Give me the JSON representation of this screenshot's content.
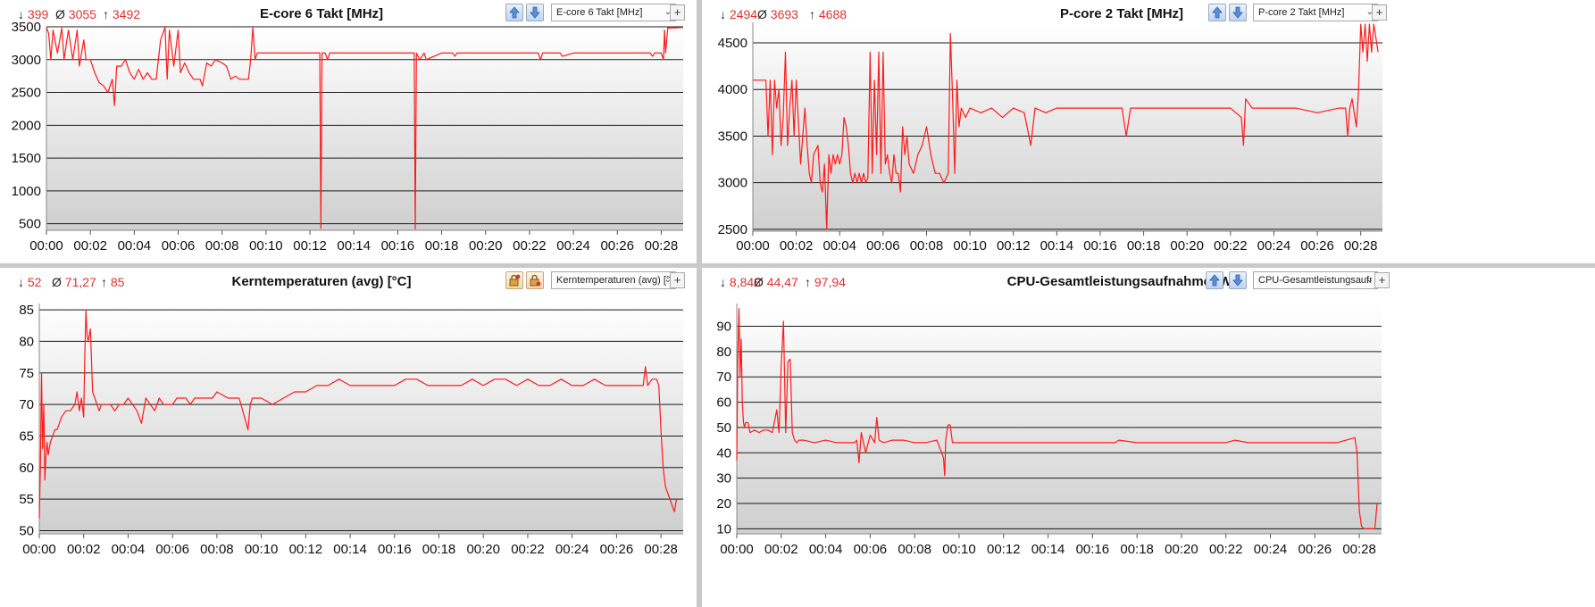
{
  "colors": {
    "line": "#ff1a1a",
    "stat_text": "#e0322f",
    "grid": "#1a1a1a",
    "plot_bg_top": "#ffffff",
    "plot_bg_bottom": "#cfcfcf"
  },
  "icons": {
    "min_symbol": "↓",
    "avg_symbol": "Ø",
    "max_symbol": "↑",
    "plus_symbol": "+",
    "dropdown_arrow": "⌄"
  },
  "panels": [
    {
      "title": "E-core 6 Takt [MHz]",
      "stats": {
        "min": "399",
        "avg": "3055",
        "max": "3492"
      },
      "dropdown": "E-core 6 Takt [MHz]",
      "button_style": "arrows",
      "icon_names": [
        "arrow-up-icon",
        "arrow-down-icon"
      ]
    },
    {
      "title": "P-core 2 Takt [MHz]",
      "stats": {
        "min": "2494",
        "avg": "3693",
        "max": "4688"
      },
      "dropdown": "P-core 2 Takt [MHz]",
      "button_style": "arrows",
      "icon_names": [
        "arrow-up-icon",
        "arrow-down-icon"
      ]
    },
    {
      "title": "Kerntemperaturen (avg) [°C]",
      "stats": {
        "min": "52",
        "avg": "71,27",
        "max": "85"
      },
      "dropdown": "Kerntemperaturen (avg) [°",
      "button_style": "locks",
      "icon_names": [
        "lock-up-icon",
        "lock-down-icon"
      ]
    },
    {
      "title": "CPU-Gesamtleistungsaufnahme [W]",
      "stats": {
        "min": "8,848",
        "avg": "44,47",
        "max": "97,94"
      },
      "dropdown": "CPU-Gesamtleistungsaufr",
      "button_style": "arrows",
      "icon_names": [
        "arrow-up-icon",
        "arrow-down-icon"
      ]
    }
  ],
  "chart_data": [
    {
      "type": "line",
      "title": "E-core 6 Takt [MHz]",
      "x_unit": "minutes",
      "xlim": [
        0,
        29
      ],
      "ylim": [
        400,
        3500
      ],
      "yticks": [
        500,
        1000,
        1500,
        2000,
        2500,
        3000,
        3500
      ],
      "xtick_labels": [
        "00:00",
        "00:02",
        "00:04",
        "00:06",
        "00:08",
        "00:10",
        "00:12",
        "00:14",
        "00:16",
        "00:18",
        "00:20",
        "00:22",
        "00:24",
        "00:26",
        "00:28"
      ],
      "grid": true,
      "series": [
        {
          "x": [
            0,
            0.1,
            0.2,
            0.3,
            0.5,
            0.7,
            0.8,
            1.0,
            1.2,
            1.4,
            1.5,
            1.7,
            1.8,
            2.0,
            2.2,
            2.4,
            2.6,
            2.8,
            3.0,
            3.1,
            3.2,
            3.4,
            3.6,
            3.8,
            4.0,
            4.2,
            4.4,
            4.6,
            4.8,
            5.0,
            5.2,
            5.4,
            5.5,
            5.6,
            5.8,
            6.0,
            6.1,
            6.3,
            6.5,
            6.7,
            7.0,
            7.1,
            7.3,
            7.5,
            7.7,
            8.0,
            8.2,
            8.4,
            8.6,
            8.8,
            9.0,
            9.2,
            9.3,
            9.4,
            9.5,
            9.6,
            10.0,
            11.0,
            12.2,
            12.45,
            12.5,
            12.55,
            12.7,
            12.8,
            12.9,
            13.0,
            13.5,
            14.0,
            15.0,
            16.0,
            16.5,
            16.75,
            16.8,
            16.85,
            17.0,
            17.2,
            17.3,
            18.0,
            18.5,
            18.6,
            18.7,
            19.0,
            20.0,
            21.0,
            22.0,
            22.4,
            22.5,
            22.6,
            23.0,
            23.3,
            23.4,
            23.5,
            24.0,
            25.0,
            26.0,
            27.0,
            27.5,
            27.6,
            27.7,
            28.0,
            28.1,
            28.15,
            28.2,
            28.3,
            28.4,
            29.0
          ],
          "y": [
            3490,
            3400,
            3000,
            3450,
            3100,
            3480,
            3000,
            3450,
            3000,
            3450,
            2900,
            3300,
            3000,
            3000,
            2800,
            2650,
            2600,
            2500,
            2700,
            2300,
            2900,
            2900,
            3000,
            2800,
            2700,
            2850,
            2700,
            2800,
            2700,
            2700,
            3300,
            3490,
            2700,
            3450,
            2900,
            3450,
            2800,
            2950,
            2800,
            2700,
            2700,
            2600,
            2950,
            2900,
            3000,
            2950,
            2900,
            2700,
            2750,
            2700,
            2700,
            2700,
            3000,
            3490,
            3000,
            3100,
            3100,
            3100,
            3100,
            3100,
            430,
            3100,
            3100,
            3000,
            3100,
            3100,
            3100,
            3100,
            3100,
            3100,
            3100,
            3100,
            420,
            3100,
            3000,
            3100,
            3000,
            3100,
            3100,
            3050,
            3100,
            3100,
            3100,
            3100,
            3100,
            3100,
            3000,
            3100,
            3100,
            3100,
            3100,
            3050,
            3100,
            3100,
            3100,
            3100,
            3100,
            3050,
            3100,
            3100,
            3000,
            3450,
            3100,
            3490,
            3480,
            3490
          ]
        }
      ]
    },
    {
      "type": "line",
      "title": "P-core 2 Takt [MHz]",
      "x_unit": "minutes",
      "xlim": [
        0,
        29
      ],
      "ylim": [
        2480,
        4720
      ],
      "yticks": [
        2500,
        3000,
        3500,
        4000,
        4500
      ],
      "xtick_labels": [
        "00:00",
        "00:02",
        "00:04",
        "00:06",
        "00:08",
        "00:10",
        "00:12",
        "00:14",
        "00:16",
        "00:18",
        "00:20",
        "00:22",
        "00:24",
        "00:26",
        "00:28"
      ],
      "grid": true,
      "series": [
        {
          "x": [
            0,
            0.6,
            0.7,
            0.8,
            0.9,
            1.0,
            1.1,
            1.2,
            1.3,
            1.4,
            1.5,
            1.6,
            1.7,
            1.8,
            1.9,
            2.0,
            2.2,
            2.4,
            2.5,
            2.6,
            2.7,
            2.8,
            3.0,
            3.1,
            3.2,
            3.3,
            3.4,
            3.5,
            3.6,
            3.7,
            3.8,
            3.9,
            4.0,
            4.1,
            4.2,
            4.3,
            4.4,
            4.5,
            4.6,
            4.7,
            4.8,
            4.9,
            5.0,
            5.1,
            5.2,
            5.3,
            5.4,
            5.5,
            5.6,
            5.7,
            5.8,
            5.9,
            6.0,
            6.1,
            6.2,
            6.3,
            6.4,
            6.5,
            6.6,
            6.7,
            6.8,
            6.9,
            7.0,
            7.1,
            7.2,
            7.4,
            7.6,
            7.8,
            8.0,
            8.2,
            8.4,
            8.6,
            8.8,
            9.0,
            9.1,
            9.2,
            9.3,
            9.4,
            9.5,
            9.6,
            9.8,
            10.0,
            10.5,
            11.0,
            11.5,
            12.0,
            12.5,
            12.8,
            13.0,
            13.5,
            14.0,
            15.0,
            16.0,
            17.0,
            17.2,
            17.4,
            18.0,
            19.0,
            20.0,
            21.0,
            22.0,
            22.5,
            22.6,
            22.7,
            23.0,
            24.0,
            25.0,
            26.0,
            27.0,
            27.3,
            27.4,
            27.5,
            27.6,
            27.8,
            27.9,
            28.0,
            28.1,
            28.2,
            28.3,
            28.4,
            28.5,
            28.6,
            28.8
          ],
          "y": [
            4100,
            4100,
            3500,
            4100,
            3300,
            4100,
            3800,
            4000,
            3400,
            3700,
            4400,
            3400,
            3800,
            4100,
            3500,
            4100,
            3200,
            3800,
            3400,
            3100,
            3000,
            3300,
            3400,
            3000,
            2900,
            3200,
            2500,
            3300,
            3100,
            3300,
            3200,
            3300,
            3200,
            3300,
            3700,
            3600,
            3400,
            3100,
            3000,
            3100,
            3000,
            3100,
            3000,
            3100,
            3000,
            3050,
            4400,
            3100,
            4100,
            3300,
            4400,
            3100,
            4400,
            3200,
            3300,
            3100,
            3000,
            3300,
            3100,
            3100,
            2900,
            3600,
            3300,
            3500,
            3200,
            3100,
            3300,
            3400,
            3600,
            3300,
            3100,
            3100,
            3000,
            3100,
            4600,
            3900,
            3100,
            4100,
            3600,
            3800,
            3700,
            3800,
            3750,
            3800,
            3700,
            3800,
            3750,
            3400,
            3800,
            3750,
            3800,
            3800,
            3800,
            3800,
            3500,
            3800,
            3800,
            3800,
            3800,
            3800,
            3800,
            3700,
            3400,
            3900,
            3800,
            3800,
            3800,
            3750,
            3800,
            3800,
            3500,
            3800,
            3900,
            3600,
            4000,
            4700,
            4400,
            4700,
            4300,
            4700,
            4400,
            4700,
            4400
          ]
        }
      ]
    },
    {
      "type": "line",
      "title": "Kerntemperaturen (avg) [°C]",
      "x_unit": "minutes",
      "xlim": [
        0,
        29
      ],
      "ylim": [
        49.5,
        86
      ],
      "yticks": [
        50,
        55,
        60,
        65,
        70,
        75,
        80,
        85
      ],
      "xtick_labels": [
        "00:00",
        "00:02",
        "00:04",
        "00:06",
        "00:08",
        "00:10",
        "00:12",
        "00:14",
        "00:16",
        "00:18",
        "00:20",
        "00:22",
        "00:24",
        "00:26",
        "00:28"
      ],
      "grid": true,
      "series": [
        {
          "x": [
            0,
            0.05,
            0.1,
            0.15,
            0.2,
            0.25,
            0.3,
            0.35,
            0.4,
            0.5,
            0.6,
            0.7,
            0.8,
            0.9,
            1.0,
            1.2,
            1.4,
            1.6,
            1.7,
            1.8,
            1.9,
            2.0,
            2.05,
            2.1,
            2.15,
            2.2,
            2.3,
            2.4,
            2.5,
            2.6,
            2.7,
            2.8,
            3.0,
            3.2,
            3.4,
            3.6,
            3.8,
            4.0,
            4.2,
            4.4,
            4.6,
            4.8,
            5.0,
            5.2,
            5.4,
            5.6,
            5.8,
            6.0,
            6.2,
            6.4,
            6.6,
            6.8,
            7.0,
            7.2,
            7.5,
            7.8,
            8.0,
            8.5,
            9.0,
            9.4,
            9.5,
            9.6,
            9.8,
            10.0,
            10.5,
            11.0,
            11.5,
            12.0,
            12.5,
            13.0,
            13.5,
            14.0,
            14.5,
            15.0,
            15.5,
            16.0,
            16.5,
            17.0,
            17.5,
            18.0,
            18.5,
            19.0,
            19.5,
            20.0,
            20.5,
            21.0,
            21.5,
            22.0,
            22.5,
            23.0,
            23.5,
            24.0,
            24.5,
            25.0,
            25.5,
            26.0,
            26.5,
            27.0,
            27.2,
            27.3,
            27.4,
            27.6,
            27.8,
            27.9,
            28.0,
            28.1,
            28.2,
            28.3,
            28.4,
            28.5,
            28.6,
            28.7
          ],
          "y": [
            52,
            60,
            75,
            63,
            70,
            58,
            62,
            64,
            62,
            64,
            65,
            66,
            66,
            67,
            68,
            69,
            69,
            70,
            72,
            69,
            71,
            68,
            78,
            85,
            81,
            80,
            82,
            72,
            71,
            70,
            69,
            70,
            70,
            70,
            69,
            70,
            70,
            71,
            70,
            69,
            67,
            71,
            70,
            69,
            71,
            70,
            70,
            70,
            71,
            71,
            71,
            70,
            71,
            71,
            71,
            71,
            72,
            71,
            71,
            66,
            70,
            71,
            71,
            71,
            70,
            71,
            72,
            72,
            73,
            73,
            74,
            73,
            73,
            73,
            73,
            73,
            74,
            74,
            73,
            73,
            73,
            73,
            74,
            73,
            74,
            74,
            73,
            74,
            73,
            73,
            74,
            73,
            73,
            74,
            73,
            73,
            73,
            73,
            73,
            76,
            73,
            74,
            74,
            73,
            66,
            60,
            57,
            56,
            55,
            54,
            53,
            55
          ]
        }
      ]
    },
    {
      "type": "line",
      "title": "CPU-Gesamtleistungsaufnahme [W]",
      "x_unit": "minutes",
      "xlim": [
        0,
        29
      ],
      "ylim": [
        8,
        99
      ],
      "yticks": [
        10,
        20,
        30,
        40,
        50,
        60,
        70,
        80,
        90
      ],
      "xtick_labels": [
        "00:00",
        "00:02",
        "00:04",
        "00:06",
        "00:08",
        "00:10",
        "00:12",
        "00:14",
        "00:16",
        "00:18",
        "00:20",
        "00:22",
        "00:24",
        "00:26",
        "00:28"
      ],
      "grid": true,
      "series": [
        {
          "x": [
            0,
            0.05,
            0.1,
            0.15,
            0.2,
            0.25,
            0.3,
            0.35,
            0.4,
            0.5,
            0.6,
            0.8,
            1.0,
            1.2,
            1.4,
            1.6,
            1.8,
            1.9,
            2.0,
            2.1,
            2.2,
            2.3,
            2.4,
            2.5,
            2.6,
            2.7,
            2.8,
            3.0,
            3.5,
            4.0,
            4.5,
            5.0,
            5.3,
            5.4,
            5.5,
            5.6,
            5.7,
            5.8,
            6.0,
            6.2,
            6.3,
            6.4,
            6.6,
            7.0,
            7.5,
            8.0,
            8.5,
            9.0,
            9.3,
            9.35,
            9.4,
            9.5,
            9.6,
            9.7,
            10.0,
            11.0,
            12.0,
            13.0,
            14.0,
            15.0,
            16.0,
            17.0,
            17.2,
            18.0,
            19.0,
            20.0,
            21.0,
            22.0,
            22.4,
            23.0,
            24.0,
            25.0,
            26.0,
            27.0,
            27.8,
            27.9,
            28.0,
            28.1,
            28.2,
            28.4,
            28.6,
            28.7,
            28.8
          ],
          "y": [
            37,
            80,
            97,
            70,
            85,
            60,
            52,
            50,
            52,
            52,
            48,
            49,
            48,
            49,
            49,
            48,
            57,
            48,
            75,
            92,
            48,
            76,
            77,
            48,
            45,
            44,
            45,
            45,
            44,
            45,
            44,
            44,
            44,
            45,
            36,
            48,
            44,
            40,
            47,
            44,
            54,
            45,
            44,
            45,
            45,
            44,
            44,
            45,
            38,
            31,
            45,
            51,
            51,
            44,
            44,
            44,
            44,
            44,
            44,
            44,
            44,
            44,
            45,
            44,
            44,
            44,
            44,
            44,
            45,
            44,
            44,
            44,
            44,
            44,
            46,
            40,
            17,
            11,
            10,
            10,
            10,
            10,
            20
          ]
        }
      ]
    }
  ]
}
